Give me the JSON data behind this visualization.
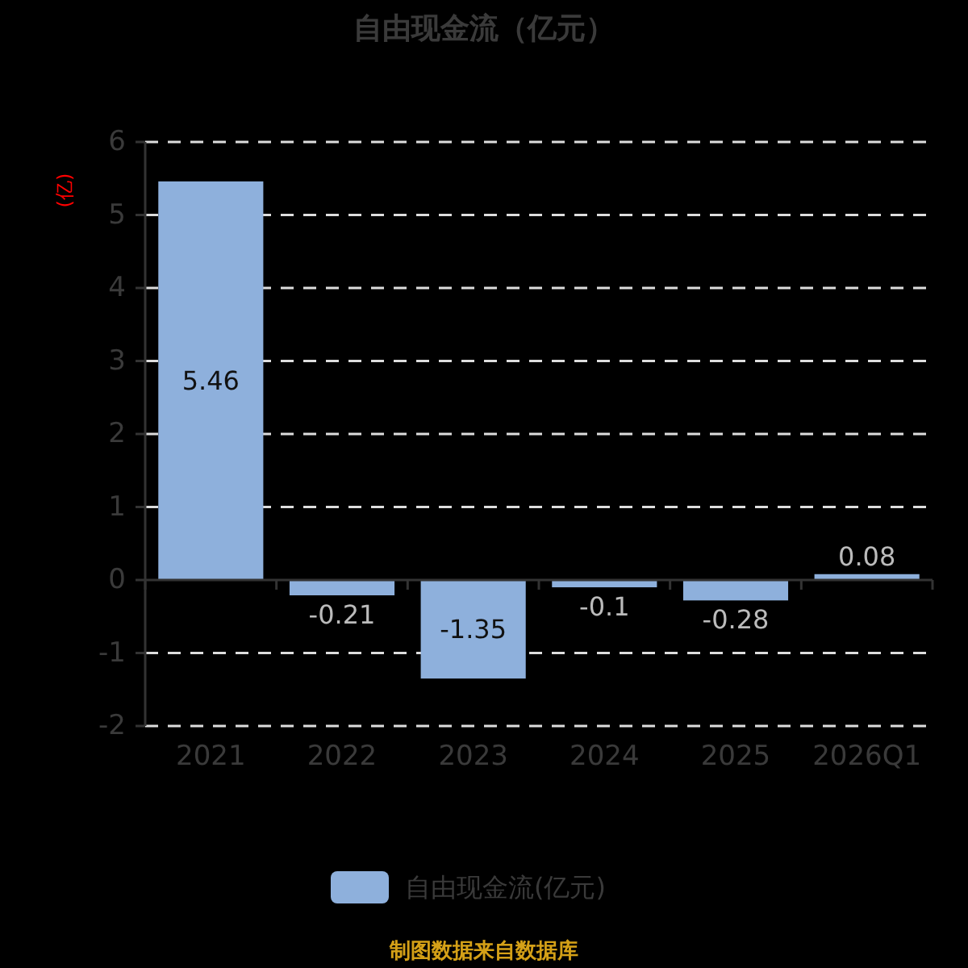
{
  "chart_data": {
    "type": "bar",
    "title": "自由现金流（亿元）",
    "ylabel": "(亿)",
    "categories": [
      "2021",
      "2022",
      "2023",
      "2024",
      "2025",
      "2026Q1"
    ],
    "series": [
      {
        "name": "自由现金流(亿元)",
        "color": "#8eb0dc",
        "values": [
          5.46,
          -0.21,
          -1.35,
          -0.1,
          -0.28,
          0.08
        ]
      }
    ],
    "ylim": [
      -2,
      6
    ],
    "yticks": [
      -2,
      -1,
      0,
      1,
      2,
      3,
      4,
      5,
      6
    ],
    "grid": "y",
    "legend": "bottom",
    "data_labels": true,
    "annotations": [
      "制图数据来自数据库"
    ]
  }
}
